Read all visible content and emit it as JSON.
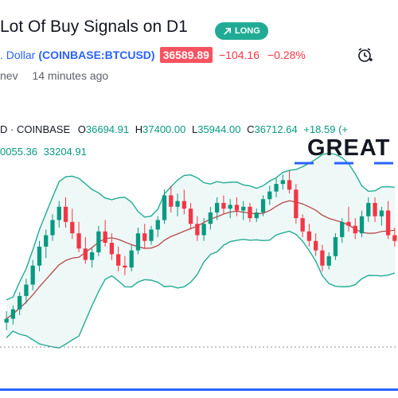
{
  "idea": {
    "title_visible": "Lot Of Buy Signals on D1",
    "badge": "LONG"
  },
  "symbol": {
    "name_visible": ". Dollar",
    "ticker": "(COINBASE:BTCUSD)",
    "price": "36589.89",
    "change": "−104.16",
    "change_pct": "−0.28%"
  },
  "author": {
    "name_visible": "nev",
    "posted": "14 minutes ago"
  },
  "chart": {
    "header_label": "D · COINBASE",
    "o_label": "O",
    "o_val": "36694.91",
    "h_label": "H",
    "h_val": "37400.00",
    "l_label": "L",
    "l_val": "35944.00",
    "c_label": "C",
    "c_val": "36712.64",
    "delta": "+18.59 (+",
    "bb_val1": "0055.36",
    "bb_val2": "33204.91",
    "annotation": "GREAT",
    "colors": {
      "up": "#089981",
      "down": "#f23645",
      "band": "#22ab94",
      "basis": "#b33a3a",
      "annotation_line": "#2962ff"
    }
  },
  "chart_data": {
    "type": "candlestick",
    "ylim": [
      27000,
      41000
    ],
    "candles": [
      {
        "o": 30300,
        "h": 30900,
        "l": 29900,
        "c": 30500
      },
      {
        "o": 30500,
        "h": 31200,
        "l": 30200,
        "c": 31000
      },
      {
        "o": 31000,
        "h": 31900,
        "l": 30700,
        "c": 31700
      },
      {
        "o": 31700,
        "h": 32600,
        "l": 31300,
        "c": 32300
      },
      {
        "o": 32300,
        "h": 33600,
        "l": 32000,
        "c": 33300
      },
      {
        "o": 33300,
        "h": 34600,
        "l": 33000,
        "c": 34300
      },
      {
        "o": 34300,
        "h": 35200,
        "l": 33700,
        "c": 34900
      },
      {
        "o": 34900,
        "h": 36000,
        "l": 34600,
        "c": 35700
      },
      {
        "o": 35700,
        "h": 36700,
        "l": 35300,
        "c": 36400
      },
      {
        "o": 36400,
        "h": 36900,
        "l": 35300,
        "c": 35600
      },
      {
        "o": 35600,
        "h": 36300,
        "l": 34700,
        "c": 35000
      },
      {
        "o": 35000,
        "h": 35600,
        "l": 34000,
        "c": 34200
      },
      {
        "o": 34200,
        "h": 34800,
        "l": 33400,
        "c": 33600
      },
      {
        "o": 33600,
        "h": 34200,
        "l": 33200,
        "c": 34000
      },
      {
        "o": 34000,
        "h": 35400,
        "l": 33800,
        "c": 35100
      },
      {
        "o": 35100,
        "h": 35700,
        "l": 34300,
        "c": 34500
      },
      {
        "o": 34500,
        "h": 35000,
        "l": 33600,
        "c": 33900
      },
      {
        "o": 33900,
        "h": 34300,
        "l": 33000,
        "c": 33300
      },
      {
        "o": 33300,
        "h": 33800,
        "l": 32800,
        "c": 33200
      },
      {
        "o": 33200,
        "h": 34400,
        "l": 33000,
        "c": 34100
      },
      {
        "o": 34100,
        "h": 35300,
        "l": 33900,
        "c": 35000
      },
      {
        "o": 35000,
        "h": 35500,
        "l": 34200,
        "c": 34600
      },
      {
        "o": 34600,
        "h": 35400,
        "l": 34400,
        "c": 35200
      },
      {
        "o": 35200,
        "h": 35900,
        "l": 34800,
        "c": 35700
      },
      {
        "o": 35700,
        "h": 37300,
        "l": 35500,
        "c": 37000
      },
      {
        "o": 37000,
        "h": 37500,
        "l": 36100,
        "c": 36400
      },
      {
        "o": 36400,
        "h": 37100,
        "l": 35900,
        "c": 36700
      },
      {
        "o": 36700,
        "h": 37300,
        "l": 36000,
        "c": 36300
      },
      {
        "o": 36300,
        "h": 36600,
        "l": 35200,
        "c": 35500
      },
      {
        "o": 35500,
        "h": 35900,
        "l": 34600,
        "c": 34900
      },
      {
        "o": 34900,
        "h": 35800,
        "l": 34600,
        "c": 35500
      },
      {
        "o": 35500,
        "h": 36400,
        "l": 35200,
        "c": 36100
      },
      {
        "o": 36100,
        "h": 36900,
        "l": 35700,
        "c": 36600
      },
      {
        "o": 36600,
        "h": 37000,
        "l": 36000,
        "c": 36300
      },
      {
        "o": 36300,
        "h": 36800,
        "l": 35800,
        "c": 36500
      },
      {
        "o": 36500,
        "h": 36900,
        "l": 35900,
        "c": 36200
      },
      {
        "o": 36200,
        "h": 36700,
        "l": 35700,
        "c": 36400
      },
      {
        "o": 36400,
        "h": 36600,
        "l": 35600,
        "c": 35800
      },
      {
        "o": 35800,
        "h": 36300,
        "l": 35600,
        "c": 36100
      },
      {
        "o": 36100,
        "h": 37000,
        "l": 35900,
        "c": 36800
      },
      {
        "o": 36800,
        "h": 37500,
        "l": 36500,
        "c": 37200
      },
      {
        "o": 37200,
        "h": 37900,
        "l": 36900,
        "c": 37600
      },
      {
        "o": 37600,
        "h": 38100,
        "l": 37300,
        "c": 37800
      },
      {
        "o": 37800,
        "h": 38300,
        "l": 37100,
        "c": 37300
      },
      {
        "o": 37300,
        "h": 37600,
        "l": 35500,
        "c": 35800
      },
      {
        "o": 35800,
        "h": 36000,
        "l": 34800,
        "c": 35100
      },
      {
        "o": 35100,
        "h": 35500,
        "l": 34300,
        "c": 34600
      },
      {
        "o": 34600,
        "h": 35000,
        "l": 33800,
        "c": 34100
      },
      {
        "o": 34100,
        "h": 34400,
        "l": 33000,
        "c": 33300
      },
      {
        "o": 33300,
        "h": 34000,
        "l": 33100,
        "c": 33800
      },
      {
        "o": 33800,
        "h": 35000,
        "l": 33600,
        "c": 34800
      },
      {
        "o": 34800,
        "h": 35800,
        "l": 34500,
        "c": 35600
      },
      {
        "o": 35600,
        "h": 36400,
        "l": 35100,
        "c": 35400
      },
      {
        "o": 35400,
        "h": 35800,
        "l": 34700,
        "c": 35000
      },
      {
        "o": 35000,
        "h": 36200,
        "l": 34800,
        "c": 35900
      },
      {
        "o": 35900,
        "h": 36900,
        "l": 35600,
        "c": 36600
      },
      {
        "o": 36600,
        "h": 36900,
        "l": 35600,
        "c": 35900
      },
      {
        "o": 35900,
        "h": 36400,
        "l": 35400,
        "c": 36200
      },
      {
        "o": 36200,
        "h": 36700,
        "l": 34700,
        "c": 34900
      },
      {
        "o": 34900,
        "h": 35300,
        "l": 34300,
        "c": 34600
      }
    ]
  }
}
